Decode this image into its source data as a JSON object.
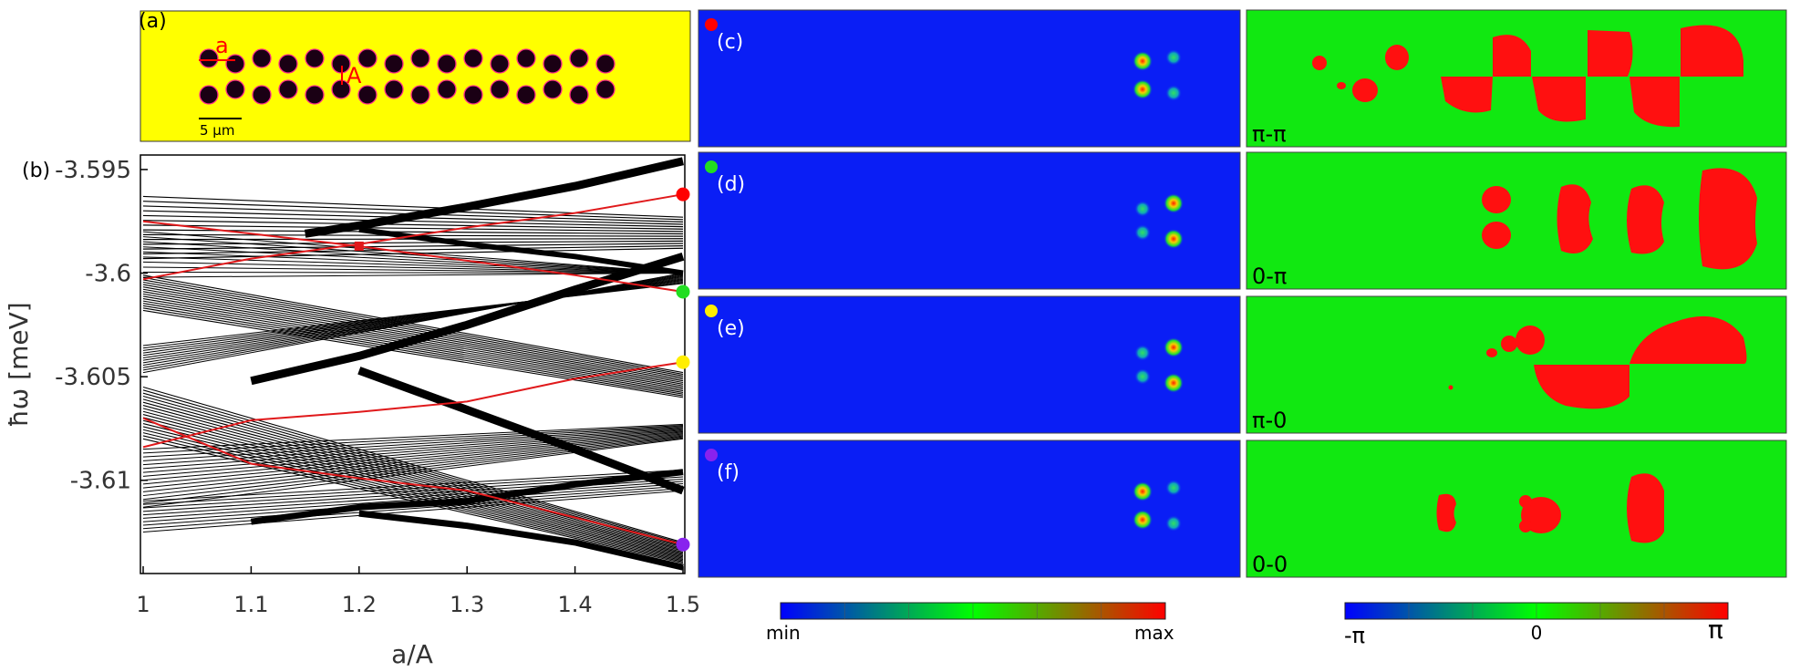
{
  "panel_a": {
    "label": "(a)",
    "a_label": "a",
    "A_label": "A",
    "scalebar_label": "5 μm",
    "colors": {
      "background": "#ffff00",
      "pillar": "#1a0014",
      "pillar_rim": "#ff2c8a",
      "marker": "#ff0000"
    }
  },
  "panel_b": {
    "label": "(b)",
    "colors": {
      "bulk": "#000000",
      "edge": "#e0191b"
    }
  },
  "chart_data": {
    "type": "line",
    "xlabel": "a/A",
    "ylabel": "ħω [meV]",
    "xlim": [
      1.0,
      1.5
    ],
    "ylim": [
      -3.6145,
      -3.5943
    ],
    "xticks": [
      "1",
      "1.1",
      "1.2",
      "1.3",
      "1.4",
      "1.5"
    ],
    "yticks": [
      "-3.595",
      "-3.6",
      "-3.605",
      "-3.61"
    ],
    "edge_states": [
      {
        "x": [
          1.0,
          1.1,
          1.2,
          1.3,
          1.4,
          1.5
        ],
        "y": [
          -3.6003,
          -3.5993,
          -3.5986,
          -3.5978,
          -3.5971,
          -3.5962
        ]
      },
      {
        "x": [
          1.0,
          1.1,
          1.2,
          1.3,
          1.4,
          1.5
        ],
        "y": [
          -3.5975,
          -3.5981,
          -3.5987,
          -3.5994,
          -3.6001,
          -3.6009
        ]
      },
      {
        "x": [
          1.0,
          1.1,
          1.2,
          1.3,
          1.4,
          1.5
        ],
        "y": [
          -3.6084,
          -3.6071,
          -3.6067,
          -3.6062,
          -3.6051,
          -3.6043
        ]
      },
      {
        "x": [
          1.0,
          1.1,
          1.2,
          1.3,
          1.4,
          1.5
        ],
        "y": [
          -3.607,
          -3.6092,
          -3.6099,
          -3.6105,
          -3.6118,
          -3.6131
        ]
      }
    ],
    "marker": {
      "x": 1.2,
      "y": -3.5987
    },
    "end_points": [
      {
        "x": 1.5,
        "y": -3.5962,
        "color": "#ff0000"
      },
      {
        "x": 1.5,
        "y": -3.6009,
        "color": "#22dd22"
      },
      {
        "x": 1.5,
        "y": -3.6043,
        "color": "#ffee00"
      },
      {
        "x": 1.5,
        "y": -3.6131,
        "color": "#8822ee"
      }
    ]
  },
  "rows": [
    {
      "intensity_label": "(c)",
      "dot_color": "#ff0000",
      "phase_label": "π-π"
    },
    {
      "intensity_label": "(d)",
      "dot_color": "#22dd22",
      "phase_label": "0-π"
    },
    {
      "intensity_label": "(e)",
      "dot_color": "#ffee00",
      "phase_label": "π-0"
    },
    {
      "intensity_label": "(f)",
      "dot_color": "#8822ee",
      "phase_label": "0-0"
    }
  ],
  "colorbars": {
    "intensity": {
      "min_label": "min",
      "max_label": "max"
    },
    "phase": {
      "min_label": "-π",
      "mid_label": "0",
      "max_label": "π"
    }
  },
  "colors": {
    "map_blue": "#0a1ef5",
    "map_green": "#11e811",
    "map_red": "#ff1010"
  }
}
